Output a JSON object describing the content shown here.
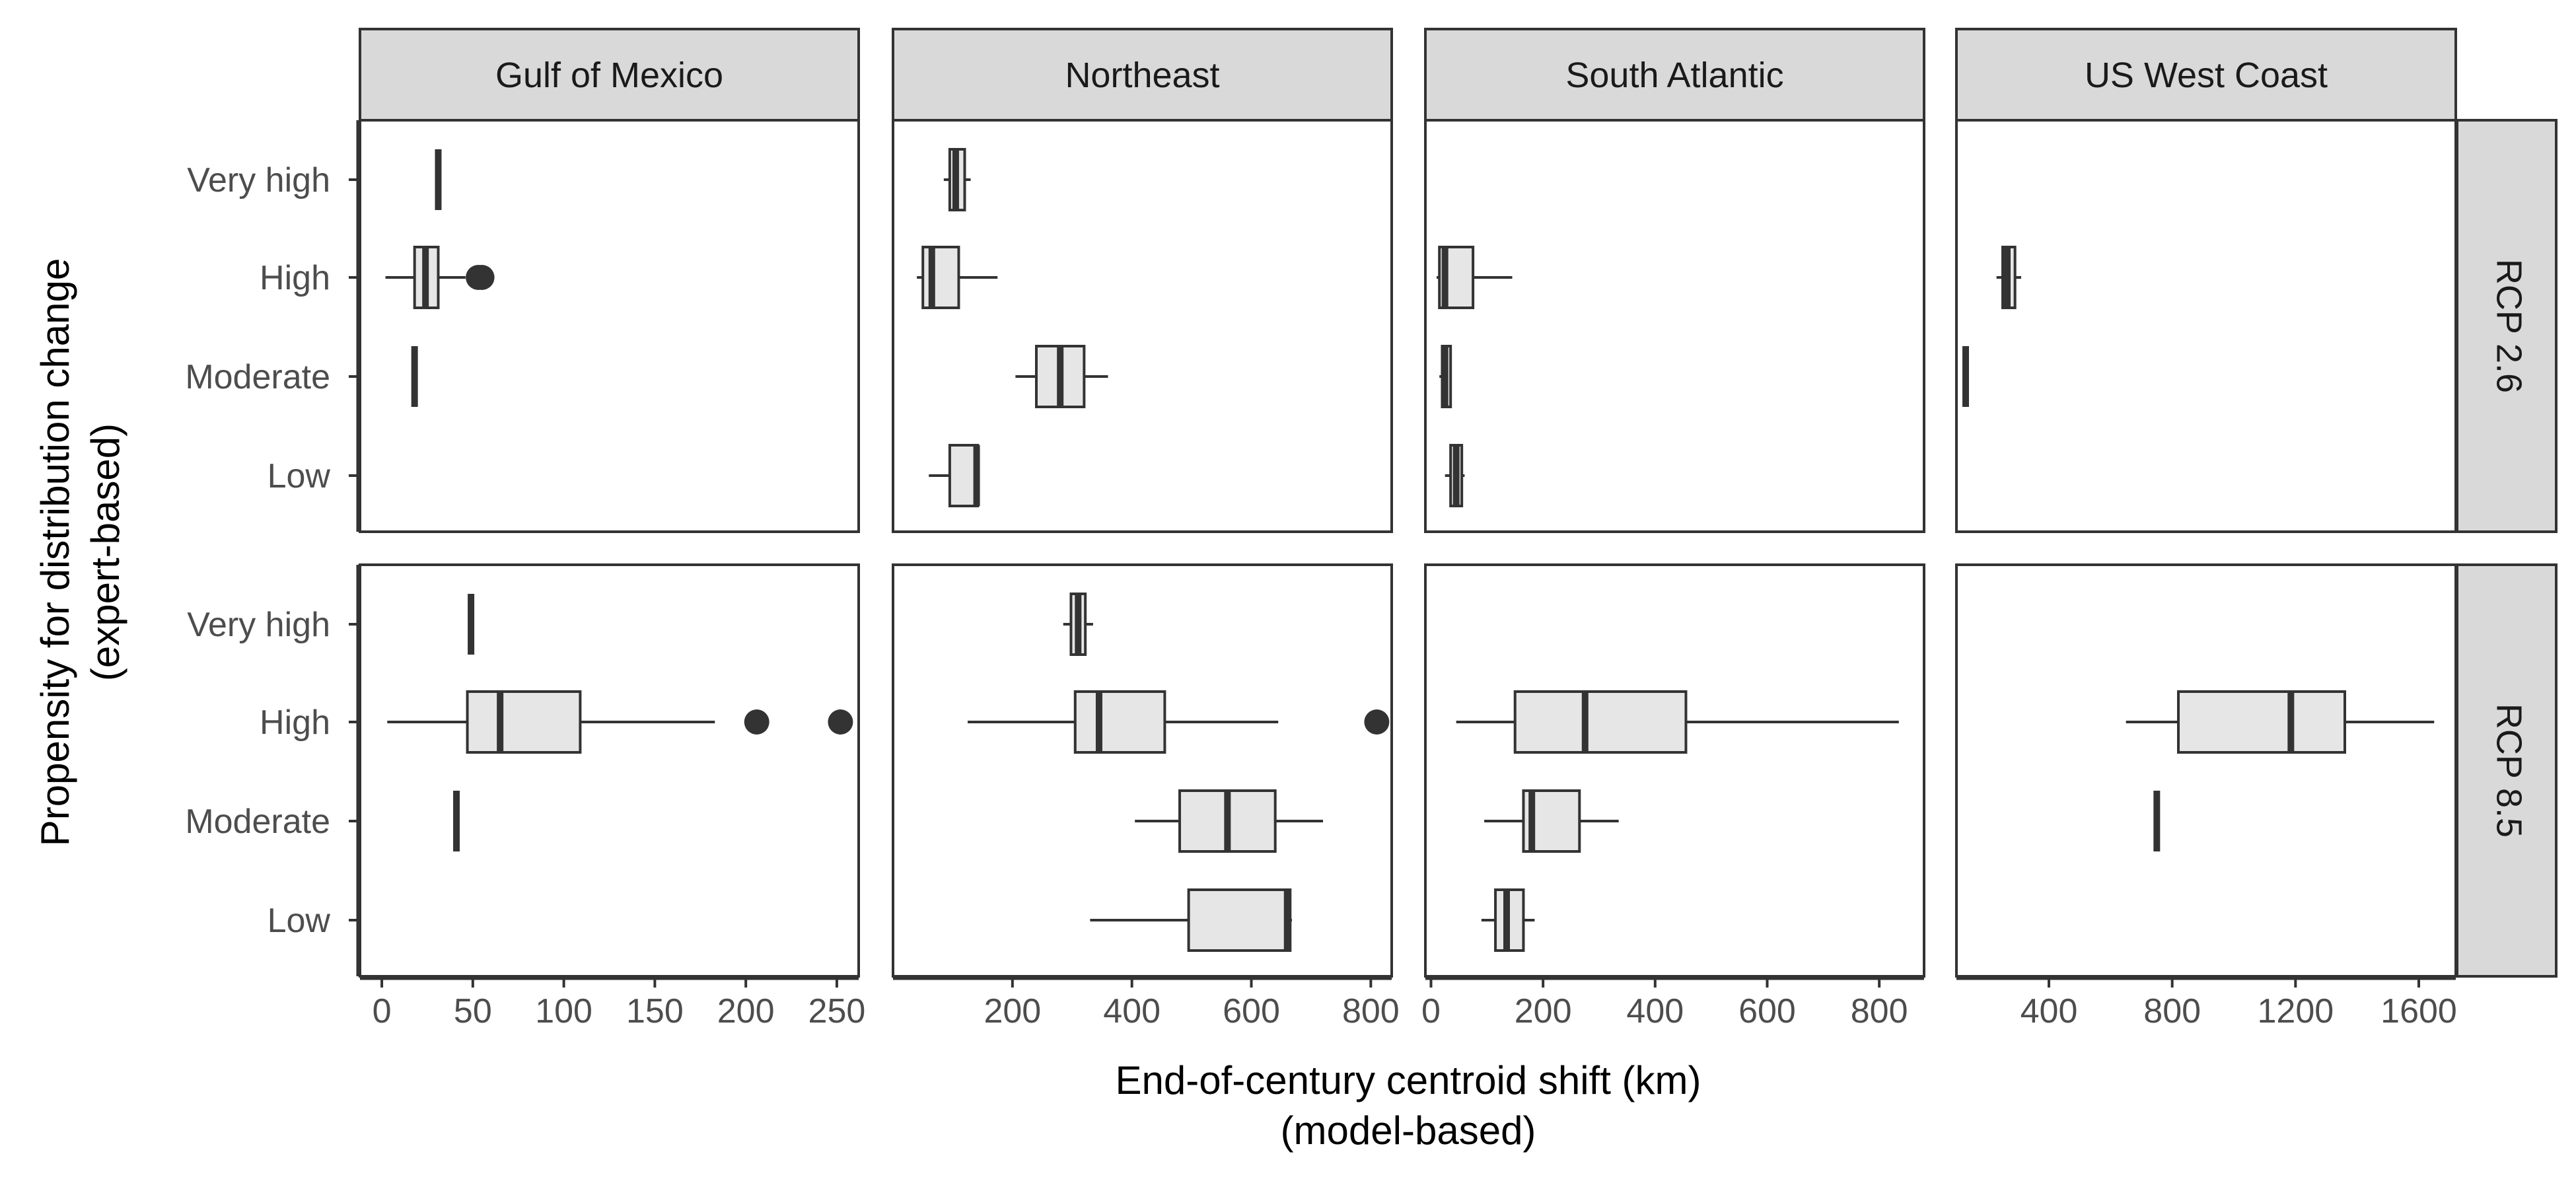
{
  "chart_data": {
    "type": "boxplot",
    "xlabel": "End-of-century centroid shift (km)",
    "xlabel_line2": "(model-based)",
    "ylabel": "Propensity for distribution change",
    "ylabel_line2": "(expert-based)",
    "regions": [
      "Gulf of Mexico",
      "Northeast",
      "South Atlantic",
      "US West Coast"
    ],
    "scenarios": [
      "RCP 2.6",
      "RCP 8.5"
    ],
    "categories": [
      "Very high",
      "High",
      "Moderate",
      "Low"
    ],
    "x_axes": [
      {
        "region": "Gulf of Mexico",
        "xlim": [
          -12,
          262
        ],
        "ticks": [
          0,
          50,
          100,
          150,
          200,
          250
        ],
        "tick_labels": [
          "0",
          "50",
          "100",
          "150",
          "200",
          "250"
        ]
      },
      {
        "region": "Northeast",
        "xlim": [
          0,
          835
        ],
        "ticks": [
          200,
          400,
          600,
          800
        ],
        "tick_labels": [
          "200",
          "400",
          "600",
          "800"
        ]
      },
      {
        "region": "South Atlantic",
        "xlim": [
          -10,
          880
        ],
        "ticks": [
          0,
          200,
          400,
          600,
          800
        ],
        "tick_labels": [
          "0",
          "200",
          "400",
          "600",
          "800"
        ]
      },
      {
        "region": "US West Coast",
        "xlim": [
          100,
          1720
        ],
        "ticks": [
          400,
          800,
          1200,
          1600
        ],
        "tick_labels": [
          "400",
          "800",
          "1200",
          "1600"
        ]
      }
    ],
    "panels": [
      {
        "scenario": "RCP 2.6",
        "region": "Gulf of Mexico",
        "boxes": [
          {
            "category": "Very high",
            "min": 31,
            "q1": 31,
            "median": 31,
            "q3": 31,
            "max": 31,
            "outliers": []
          },
          {
            "category": "High",
            "min": 2,
            "q1": 18,
            "median": 24,
            "q3": 31,
            "max": 46,
            "outliers": [
              53,
              55
            ]
          },
          {
            "category": "Moderate",
            "min": 18,
            "q1": 18,
            "median": 18,
            "q3": 18,
            "max": 18,
            "outliers": []
          },
          {
            "category": "Low",
            "min": null,
            "q1": null,
            "median": null,
            "q3": null,
            "max": null,
            "outliers": []
          }
        ]
      },
      {
        "scenario": "RCP 2.6",
        "region": "Northeast",
        "boxes": [
          {
            "category": "Very high",
            "min": 85,
            "q1": 95,
            "median": 105,
            "q3": 120,
            "max": 130,
            "outliers": []
          },
          {
            "category": "High",
            "min": 40,
            "q1": 50,
            "median": 65,
            "q3": 110,
            "max": 175,
            "outliers": []
          },
          {
            "category": "Moderate",
            "min": 205,
            "q1": 240,
            "median": 280,
            "q3": 320,
            "max": 360,
            "outliers": []
          },
          {
            "category": "Low",
            "min": 60,
            "q1": 95,
            "median": 140,
            "q3": 142,
            "max": 142,
            "outliers": []
          }
        ]
      },
      {
        "scenario": "RCP 2.6",
        "region": "South Atlantic",
        "boxes": [
          {
            "category": "Very high",
            "min": null,
            "q1": null,
            "median": null,
            "q3": null,
            "max": null,
            "outliers": []
          },
          {
            "category": "High",
            "min": 10,
            "q1": 15,
            "median": 25,
            "q3": 75,
            "max": 145,
            "outliers": []
          },
          {
            "category": "Moderate",
            "min": 15,
            "q1": 20,
            "median": 25,
            "q3": 35,
            "max": 35,
            "outliers": []
          },
          {
            "category": "Low",
            "min": 25,
            "q1": 35,
            "median": 45,
            "q3": 55,
            "max": 60,
            "outliers": []
          }
        ]
      },
      {
        "scenario": "RCP 2.6",
        "region": "US West Coast",
        "boxes": [
          {
            "category": "Very high",
            "min": null,
            "q1": null,
            "median": null,
            "q3": null,
            "max": null,
            "outliers": []
          },
          {
            "category": "High",
            "min": 230,
            "q1": 250,
            "median": 265,
            "q3": 290,
            "max": 310,
            "outliers": []
          },
          {
            "category": "Moderate",
            "min": 130,
            "q1": 130,
            "median": 130,
            "q3": 130,
            "max": 130,
            "outliers": []
          },
          {
            "category": "Low",
            "min": null,
            "q1": null,
            "median": null,
            "q3": null,
            "max": null,
            "outliers": []
          }
        ]
      },
      {
        "scenario": "RCP 8.5",
        "region": "Gulf of Mexico",
        "boxes": [
          {
            "category": "Very high",
            "min": 49,
            "q1": 49,
            "median": 49,
            "q3": 49,
            "max": 49,
            "outliers": []
          },
          {
            "category": "High",
            "min": 3,
            "q1": 47,
            "median": 65,
            "q3": 109,
            "max": 183,
            "outliers": [
              206,
              252
            ]
          },
          {
            "category": "Moderate",
            "min": 41,
            "q1": 41,
            "median": 41,
            "q3": 41,
            "max": 41,
            "outliers": []
          },
          {
            "category": "Low",
            "min": null,
            "q1": null,
            "median": null,
            "q3": null,
            "max": null,
            "outliers": []
          }
        ]
      },
      {
        "scenario": "RCP 8.5",
        "region": "Northeast",
        "boxes": [
          {
            "category": "Very high",
            "min": 285,
            "q1": 298,
            "median": 310,
            "q3": 322,
            "max": 335,
            "outliers": []
          },
          {
            "category": "High",
            "min": 125,
            "q1": 305,
            "median": 345,
            "q3": 455,
            "max": 645,
            "outliers": [
              810
            ]
          },
          {
            "category": "Moderate",
            "min": 405,
            "q1": 480,
            "median": 560,
            "q3": 640,
            "max": 720,
            "outliers": []
          },
          {
            "category": "Low",
            "min": 330,
            "q1": 495,
            "median": 660,
            "q3": 665,
            "max": 668,
            "outliers": []
          }
        ]
      },
      {
        "scenario": "RCP 8.5",
        "region": "South Atlantic",
        "boxes": [
          {
            "category": "Very high",
            "min": null,
            "q1": null,
            "median": null,
            "q3": null,
            "max": null,
            "outliers": []
          },
          {
            "category": "High",
            "min": 45,
            "q1": 150,
            "median": 275,
            "q3": 455,
            "max": 835,
            "outliers": []
          },
          {
            "category": "Moderate",
            "min": 95,
            "q1": 165,
            "median": 180,
            "q3": 265,
            "max": 335,
            "outliers": []
          },
          {
            "category": "Low",
            "min": 90,
            "q1": 115,
            "median": 135,
            "q3": 165,
            "max": 185,
            "outliers": []
          }
        ]
      },
      {
        "scenario": "RCP 8.5",
        "region": "US West Coast",
        "boxes": [
          {
            "category": "Very high",
            "min": null,
            "q1": null,
            "median": null,
            "q3": null,
            "max": null,
            "outliers": []
          },
          {
            "category": "High",
            "min": 650,
            "q1": 820,
            "median": 1185,
            "q3": 1360,
            "max": 1650,
            "outliers": []
          },
          {
            "category": "Moderate",
            "min": 750,
            "q1": 750,
            "median": 750,
            "q3": 750,
            "max": 750,
            "outliers": []
          },
          {
            "category": "Low",
            "min": null,
            "q1": null,
            "median": null,
            "q3": null,
            "max": null,
            "outliers": []
          }
        ]
      }
    ],
    "colors": {
      "box_fill": "#e6e6e6",
      "line": "#333333",
      "strip_fill": "#d9d9d9",
      "panel_border": "#333333"
    },
    "legend": "none",
    "grid": false
  }
}
